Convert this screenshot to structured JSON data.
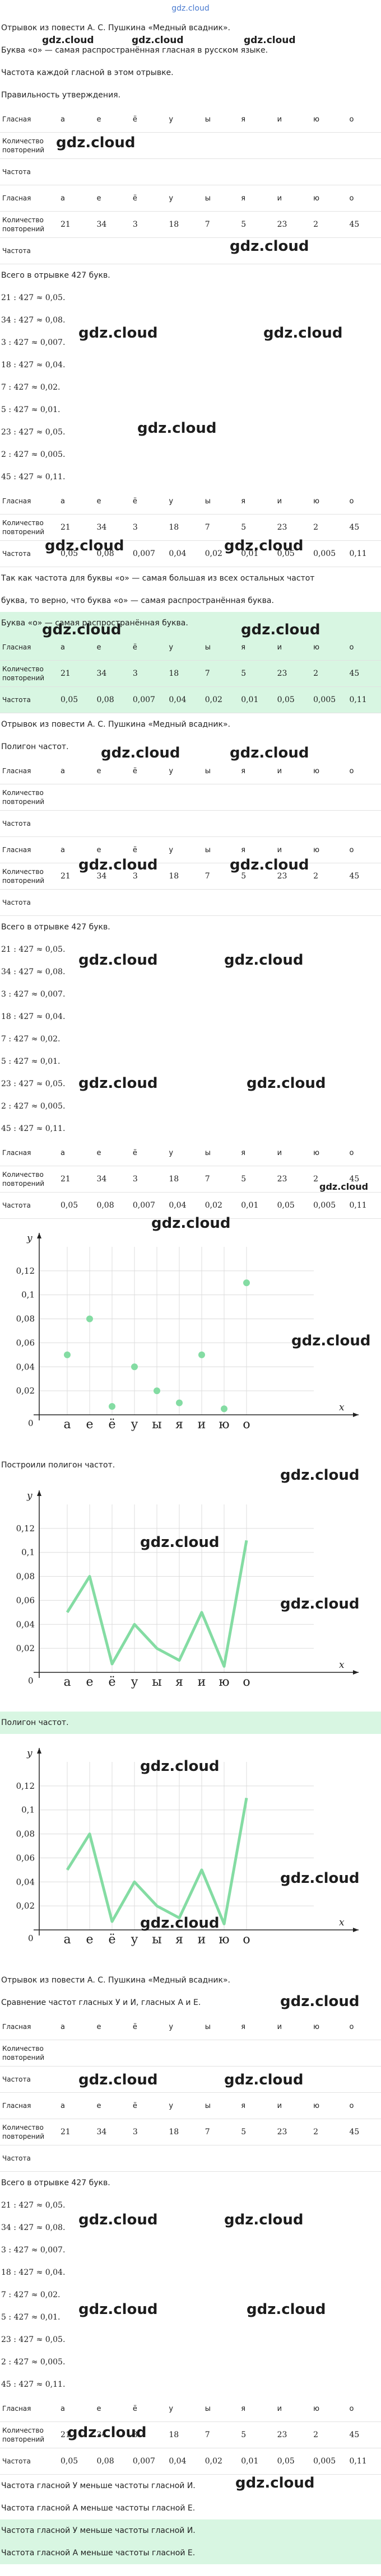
{
  "header": "gdz.cloud",
  "watermarks": [
    "gdz.cloud",
    "gdz.cloud",
    "gdz.cloud",
    "gdz.cloud",
    "gdz.cloud",
    "gdz.cloud",
    "gdz.cloud",
    "gdz.cloud",
    "gdz.cloud",
    "gdz.cloud",
    "gdz.cloud",
    "gdz.cloud",
    "gdz.cloud",
    "gdz.cloud",
    "gdz.cloud",
    "gdz.cloud",
    "gdz.cloud",
    "gdz.cloud",
    "gdz.cloud",
    "gdz.cloud",
    "gdz.cloud",
    "gdz.cloud",
    "gdz.cloud",
    "gdz.cloud",
    "gdz.cloud",
    "gdz.cloud",
    "gdz.cloud",
    "gdz.cloud",
    "gdz.cloud",
    "gdz.cloud",
    "gdz.cloud",
    "gdz.cloud",
    "gdz.cloud",
    "gdz.cloud",
    "gdz.cloud",
    "gdz.cloud",
    "gdz.cloud",
    "gdz.cloud"
  ],
  "blocks": [
    {
      "text": "Отрывок из повести А. С. Пушкина «Медный всадник»."
    },
    {
      "text": "Буква «о» — самая распространённая гласная в русском языке."
    },
    {
      "text": "Частота каждой гласной в этом отрывке."
    },
    {
      "text": "Правильность утверждения."
    },
    {
      "table": [
        [
          "Гласная",
          "а",
          "е",
          "ё",
          "у",
          "ы",
          "я",
          "и",
          "ю",
          "о"
        ],
        [
          "Количество повторений"
        ],
        [
          "Частота"
        ]
      ]
    },
    {
      "table": [
        [
          "Гласная",
          "а",
          "е",
          "ё",
          "у",
          "ы",
          "я",
          "и",
          "ю",
          "о"
        ],
        [
          "Количество повторений",
          21,
          34,
          3,
          18,
          7,
          5,
          23,
          2,
          45
        ],
        [
          "Частота"
        ]
      ]
    },
    {
      "text": "Всего в отрывке 427 букв."
    },
    {
      "lines": [
        "21 : 427 ≈ 0,05.",
        "34 : 427 ≈ 0,08.",
        "3 : 427 ≈ 0,007.",
        "18 : 427 ≈ 0,04.",
        "7 : 427 ≈ 0,02.",
        "5 : 427 ≈ 0,01.",
        "23 : 427 ≈ 0,05.",
        "2 : 427 ≈ 0,005.",
        "45 : 427 ≈ 0,11."
      ]
    },
    {
      "table": [
        [
          "Гласная",
          "а",
          "е",
          "ё",
          "у",
          "ы",
          "я",
          "и",
          "ю",
          "о"
        ],
        [
          "Количество повторений",
          21,
          34,
          3,
          18,
          7,
          5,
          23,
          2,
          45
        ],
        [
          "Частота",
          "0,05",
          "0,08",
          "0,007",
          "0,04",
          "0,02",
          "0,01",
          "0,05",
          "0,005",
          "0,11"
        ]
      ]
    },
    {
      "text": "Так как частота для буквы «о» — самая большая из всех остальных частот"
    },
    {
      "text": "буква, то верно, что буква «о» — самая распространённая буква."
    },
    {
      "text": "Буква «о» — самая распространённая буква.",
      "highlight": true
    },
    {
      "table": [
        [
          "Гласная",
          "а",
          "е",
          "ё",
          "у",
          "ы",
          "я",
          "и",
          "ю",
          "о"
        ],
        [
          "Количество повторений",
          21,
          34,
          3,
          18,
          7,
          5,
          23,
          2,
          45
        ],
        [
          "Частота",
          "0,05",
          "0,08",
          "0,007",
          "0,04",
          "0,02",
          "0,01",
          "0,05",
          "0,005",
          "0,11"
        ]
      ],
      "highlight": true
    },
    {
      "text": "Отрывок из повести А. С. Пушкина «Медный всадник»."
    },
    {
      "text": "Полигон частот."
    },
    {
      "table": [
        [
          "Гласная",
          "а",
          "е",
          "ё",
          "у",
          "ы",
          "я",
          "и",
          "ю",
          "о"
        ],
        [
          "Количество повторений"
        ],
        [
          "Частота"
        ]
      ]
    },
    {
      "table": [
        [
          "Гласная",
          "а",
          "е",
          "ё",
          "у",
          "ы",
          "я",
          "и",
          "ю",
          "о"
        ],
        [
          "Количество повторений",
          21,
          34,
          3,
          18,
          7,
          5,
          23,
          2,
          45
        ],
        [
          "Частота"
        ]
      ]
    },
    {
      "text": "Всего в отрывке 427 букв."
    },
    {
      "lines": [
        "21 : 427 ≈ 0,05.",
        "34 : 427 ≈ 0,08.",
        "3 : 427 ≈ 0,007.",
        "18 : 427 ≈ 0,04.",
        "7 : 427 ≈ 0,02.",
        "5 : 427 ≈ 0,01.",
        "23 : 427 ≈ 0,05.",
        "2 : 427 ≈ 0,005.",
        "45 : 427 ≈ 0,11."
      ]
    },
    {
      "table": [
        [
          "Гласная",
          "а",
          "е",
          "ё",
          "у",
          "ы",
          "я",
          "и",
          "ю",
          "о"
        ],
        [
          "Количество повторений",
          21,
          34,
          3,
          18,
          7,
          5,
          23,
          2,
          45
        ],
        [
          "Частота",
          "0,05",
          "0,08",
          "0,007",
          "0,04",
          "0,02",
          "0,01",
          "0,05",
          "0,005",
          "0,11"
        ]
      ]
    },
    {
      "chart": {
        "type": "scatter",
        "categories": [
          "а",
          "е",
          "ё",
          "у",
          "ы",
          "я",
          "и",
          "ю",
          "о"
        ],
        "values": [
          0.05,
          0.08,
          0.007,
          0.04,
          0.02,
          0.01,
          0.05,
          0.005,
          0.11
        ],
        "color": "#84dca3",
        "ylim": [
          0,
          0.14
        ],
        "yticks": [
          {
            "value": 0.02,
            "label": "0,02"
          },
          {
            "value": 0.04,
            "label": "0,04"
          },
          {
            "value": 0.06,
            "label": "0,06"
          },
          {
            "value": 0.08,
            "label": "0,08"
          },
          {
            "value": 0.1,
            "label": "0,1"
          },
          {
            "value": 0.12,
            "label": "0,12"
          }
        ],
        "grid": true,
        "x_label": "x",
        "y_label": "y",
        "origin_label": "0"
      }
    },
    {
      "text": "Построили полигон частот."
    },
    {
      "chart": {
        "type": "line",
        "categories": [
          "а",
          "е",
          "ё",
          "у",
          "ы",
          "я",
          "и",
          "ю",
          "о"
        ],
        "values": [
          0.05,
          0.08,
          0.007,
          0.04,
          0.02,
          0.01,
          0.05,
          0.005,
          0.11
        ],
        "color": "#84dca3",
        "ylim": [
          0,
          0.14
        ],
        "yticks": [
          {
            "value": 0.02,
            "label": "0,02"
          },
          {
            "value": 0.04,
            "label": "0,04"
          },
          {
            "value": 0.06,
            "label": "0,06"
          },
          {
            "value": 0.08,
            "label": "0,08"
          },
          {
            "value": 0.1,
            "label": "0,1"
          },
          {
            "value": 0.12,
            "label": "0,12"
          }
        ],
        "grid": true,
        "x_label": "x",
        "y_label": "y",
        "origin_label": "0"
      }
    },
    {
      "text": "Полигон частот.",
      "highlight": true
    },
    {
      "chart": {
        "type": "line",
        "categories": [
          "а",
          "е",
          "ё",
          "у",
          "ы",
          "я",
          "и",
          "ю",
          "о"
        ],
        "values": [
          0.05,
          0.08,
          0.007,
          0.04,
          0.02,
          0.01,
          0.05,
          0.005,
          0.11
        ],
        "color": "#84dca3",
        "ylim": [
          0,
          0.14
        ],
        "yticks": [
          {
            "value": 0.02,
            "label": "0,02"
          },
          {
            "value": 0.04,
            "label": "0,04"
          },
          {
            "value": 0.06,
            "label": "0,06"
          },
          {
            "value": 0.08,
            "label": "0,08"
          },
          {
            "value": 0.1,
            "label": "0,1"
          },
          {
            "value": 0.12,
            "label": "0,12"
          }
        ],
        "grid": true,
        "x_label": "x",
        "y_label": "y",
        "origin_label": "0"
      }
    },
    {
      "text": "Отрывок из повести А. С. Пушкина «Медный всадник»."
    },
    {
      "text": "Сравнение частот гласных У и И, гласных А и Е."
    },
    {
      "table": [
        [
          "Гласная",
          "а",
          "е",
          "ё",
          "у",
          "ы",
          "я",
          "и",
          "ю",
          "о"
        ],
        [
          "Количество повторений"
        ],
        [
          "Частота"
        ]
      ]
    },
    {
      "table": [
        [
          "Гласная",
          "а",
          "е",
          "ё",
          "у",
          "ы",
          "я",
          "и",
          "ю",
          "о"
        ],
        [
          "Количество повторений",
          21,
          34,
          3,
          18,
          7,
          5,
          23,
          2,
          45
        ],
        [
          "Частота"
        ]
      ]
    },
    {
      "text": "Всего в отрывке 427 букв."
    },
    {
      "lines": [
        "21 : 427 ≈ 0,05.",
        "34 : 427 ≈ 0,08.",
        "3 : 427 ≈ 0,007.",
        "18 : 427 ≈ 0,04.",
        "7 : 427 ≈ 0,02.",
        "5 : 427 ≈ 0,01.",
        "23 : 427 ≈ 0,05.",
        "2 : 427 ≈ 0,005.",
        "45 : 427 ≈ 0,11."
      ]
    },
    {
      "table": [
        [
          "Гласная",
          "а",
          "е",
          "ё",
          "у",
          "ы",
          "я",
          "и",
          "ю",
          "о"
        ],
        [
          "Количество повторений",
          21,
          34,
          3,
          18,
          7,
          5,
          23,
          2,
          45
        ],
        [
          "Частота",
          "0,05",
          "0,08",
          "0,007",
          "0,04",
          "0,02",
          "0,01",
          "0,05",
          "0,005",
          "0,11"
        ]
      ]
    },
    {
      "text": "Частота гласной У меньше частоты гласной И."
    },
    {
      "text": "Частота гласной А меньше частоты гласной Е."
    },
    {
      "text": "Частота гласной У меньше частоты гласной И.",
      "highlight": true
    },
    {
      "text": "Частота гласной А меньше частоты гласной Е.",
      "highlight": true
    }
  ]
}
